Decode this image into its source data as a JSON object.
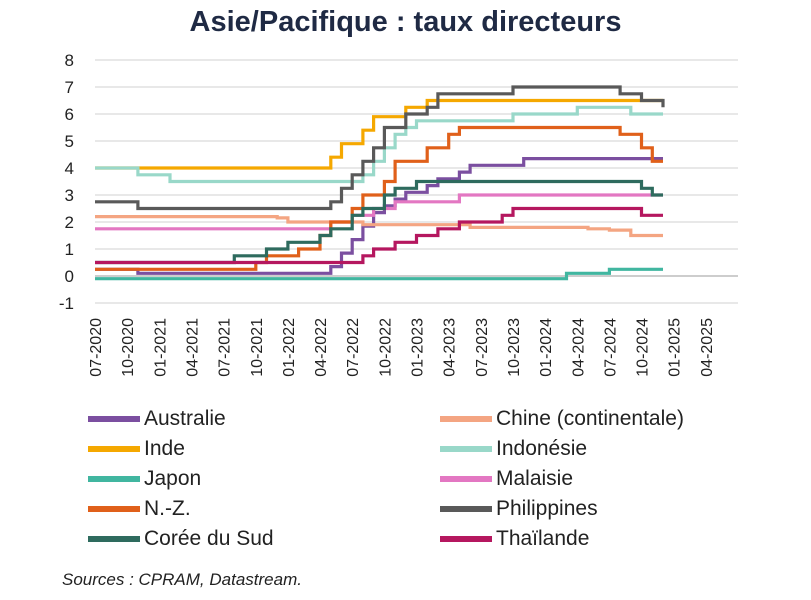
{
  "chart_data": {
    "type": "line",
    "title": "Asie/Pacifique : taux directeurs",
    "xlabel": "",
    "ylabel": "",
    "ylim": [
      -1,
      8
    ],
    "yticks": [
      8,
      7,
      6,
      5,
      4,
      3,
      2,
      1,
      0,
      -1
    ],
    "xlim": [
      "2020-07",
      "2025-07"
    ],
    "xticks": [
      "07-2020",
      "10-2020",
      "01-2021",
      "04-2021",
      "07-2021",
      "10-2021",
      "01-2022",
      "04-2022",
      "07-2022",
      "10-2022",
      "01-2023",
      "04-2023",
      "07-2023",
      "10-2023",
      "01-2024",
      "04-2024",
      "07-2024",
      "10-2024",
      "01-2025",
      "04-2025"
    ],
    "step": true,
    "grid": true,
    "legend_position": "bottom",
    "series": [
      {
        "name": "Australie",
        "color": "#7b4fa0",
        "points": [
          [
            "2020-07",
            0.25
          ],
          [
            "2020-11",
            0.1
          ],
          [
            "2022-05",
            0.35
          ],
          [
            "2022-06",
            0.85
          ],
          [
            "2022-07",
            1.35
          ],
          [
            "2022-08",
            1.85
          ],
          [
            "2022-09",
            2.35
          ],
          [
            "2022-10",
            2.6
          ],
          [
            "2022-11",
            2.85
          ],
          [
            "2022-12",
            3.1
          ],
          [
            "2023-02",
            3.35
          ],
          [
            "2023-03",
            3.6
          ],
          [
            "2023-05",
            3.85
          ],
          [
            "2023-06",
            4.1
          ],
          [
            "2023-11",
            4.35
          ],
          [
            "2024-12",
            4.35
          ]
        ]
      },
      {
        "name": "Chine (continentale)",
        "color": "#f4a582",
        "points": [
          [
            "2020-07",
            2.2
          ],
          [
            "2021-12",
            2.15
          ],
          [
            "2022-01",
            2.0
          ],
          [
            "2022-08",
            1.9
          ],
          [
            "2023-06",
            1.8
          ],
          [
            "2024-05",
            1.75
          ],
          [
            "2024-07",
            1.7
          ],
          [
            "2024-09",
            1.5
          ],
          [
            "2024-12",
            1.5
          ]
        ]
      },
      {
        "name": "Inde",
        "color": "#f5a800",
        "points": [
          [
            "2020-07",
            4.0
          ],
          [
            "2022-05",
            4.4
          ],
          [
            "2022-06",
            4.9
          ],
          [
            "2022-08",
            5.4
          ],
          [
            "2022-09",
            5.9
          ],
          [
            "2022-12",
            6.25
          ],
          [
            "2023-02",
            6.5
          ],
          [
            "2024-12",
            6.5
          ]
        ]
      },
      {
        "name": "Indonésie",
        "color": "#99d8c9",
        "points": [
          [
            "2020-07",
            4.0
          ],
          [
            "2020-11",
            3.75
          ],
          [
            "2021-02",
            3.5
          ],
          [
            "2022-08",
            3.75
          ],
          [
            "2022-09",
            4.25
          ],
          [
            "2022-10",
            4.75
          ],
          [
            "2022-11",
            5.25
          ],
          [
            "2022-12",
            5.5
          ],
          [
            "2023-01",
            5.75
          ],
          [
            "2023-10",
            6.0
          ],
          [
            "2024-04",
            6.25
          ],
          [
            "2024-09",
            6.0
          ],
          [
            "2024-12",
            6.0
          ]
        ]
      },
      {
        "name": "Japon",
        "color": "#41b6a0",
        "points": [
          [
            "2020-07",
            -0.1
          ],
          [
            "2024-03",
            0.1
          ],
          [
            "2024-07",
            0.25
          ],
          [
            "2024-12",
            0.25
          ]
        ]
      },
      {
        "name": "Malaisie",
        "color": "#e377c2",
        "points": [
          [
            "2020-07",
            1.75
          ],
          [
            "2022-05",
            2.0
          ],
          [
            "2022-07",
            2.25
          ],
          [
            "2022-09",
            2.5
          ],
          [
            "2022-11",
            2.75
          ],
          [
            "2023-05",
            3.0
          ],
          [
            "2024-12",
            3.0
          ]
        ]
      },
      {
        "name": "N.-Z.",
        "color": "#e0601a",
        "points": [
          [
            "2020-07",
            0.25
          ],
          [
            "2021-10",
            0.5
          ],
          [
            "2021-11",
            0.75
          ],
          [
            "2022-02",
            1.0
          ],
          [
            "2022-04",
            1.5
          ],
          [
            "2022-05",
            2.0
          ],
          [
            "2022-07",
            2.5
          ],
          [
            "2022-08",
            3.0
          ],
          [
            "2022-10",
            3.5
          ],
          [
            "2022-11",
            4.25
          ],
          [
            "2023-02",
            4.75
          ],
          [
            "2023-04",
            5.25
          ],
          [
            "2023-05",
            5.5
          ],
          [
            "2024-08",
            5.25
          ],
          [
            "2024-10",
            4.75
          ],
          [
            "2024-11",
            4.25
          ],
          [
            "2024-12",
            4.25
          ]
        ]
      },
      {
        "name": "Philippines",
        "color": "#595959",
        "points": [
          [
            "2020-07",
            2.75
          ],
          [
            "2020-11",
            2.5
          ],
          [
            "2022-05",
            2.75
          ],
          [
            "2022-06",
            3.25
          ],
          [
            "2022-07",
            3.75
          ],
          [
            "2022-08",
            4.25
          ],
          [
            "2022-09",
            4.75
          ],
          [
            "2022-10",
            5.5
          ],
          [
            "2022-12",
            6.0
          ],
          [
            "2023-02",
            6.25
          ],
          [
            "2023-03",
            6.75
          ],
          [
            "2023-10",
            7.0
          ],
          [
            "2024-08",
            6.75
          ],
          [
            "2024-10",
            6.5
          ],
          [
            "2024-12",
            6.25
          ]
        ]
      },
      {
        "name": "Corée du Sud",
        "color": "#2e6b5e",
        "points": [
          [
            "2020-07",
            0.5
          ],
          [
            "2021-08",
            0.75
          ],
          [
            "2021-11",
            1.0
          ],
          [
            "2022-01",
            1.25
          ],
          [
            "2022-04",
            1.5
          ],
          [
            "2022-05",
            1.75
          ],
          [
            "2022-07",
            2.25
          ],
          [
            "2022-08",
            2.5
          ],
          [
            "2022-10",
            3.0
          ],
          [
            "2022-11",
            3.25
          ],
          [
            "2023-01",
            3.5
          ],
          [
            "2024-10",
            3.25
          ],
          [
            "2024-11",
            3.0
          ],
          [
            "2024-12",
            3.0
          ]
        ]
      },
      {
        "name": "Thaïlande",
        "color": "#b5175f",
        "points": [
          [
            "2020-07",
            0.5
          ],
          [
            "2022-08",
            0.75
          ],
          [
            "2022-09",
            1.0
          ],
          [
            "2022-11",
            1.25
          ],
          [
            "2023-01",
            1.5
          ],
          [
            "2023-03",
            1.75
          ],
          [
            "2023-05",
            2.0
          ],
          [
            "2023-09",
            2.25
          ],
          [
            "2023-10",
            2.5
          ],
          [
            "2024-10",
            2.25
          ],
          [
            "2024-12",
            2.25
          ]
        ]
      }
    ]
  },
  "source": "Sources : CPRAM, Datastream."
}
